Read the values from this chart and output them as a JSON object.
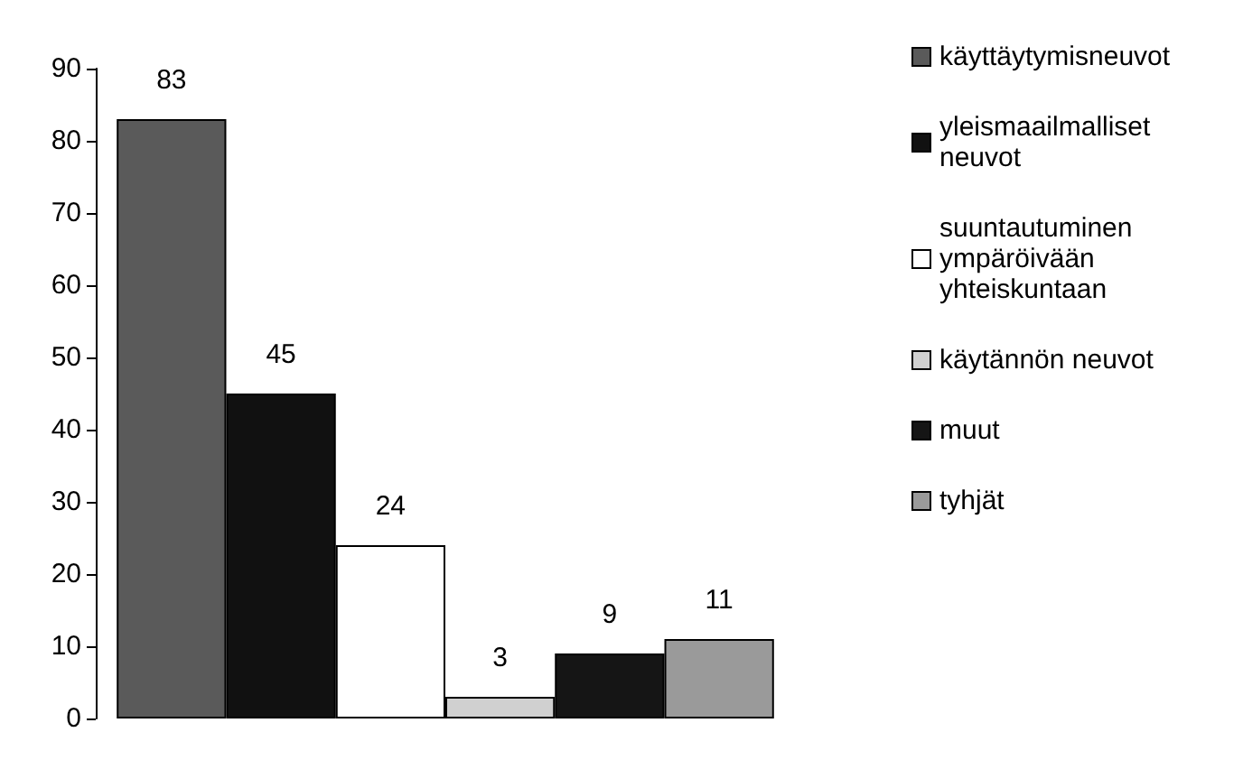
{
  "chart_data": {
    "type": "bar",
    "categories": [
      null
    ],
    "series": [
      {
        "name": "käyttäytymisneuvot",
        "color": "#5a5a5a",
        "values": [
          83
        ]
      },
      {
        "name": "yleismaailmalliset neuvot",
        "color": "#111111",
        "values": [
          45
        ]
      },
      {
        "name": "suuntautuminen ympäröivään yhteiskuntaan",
        "color": "#ffffff",
        "values": [
          24
        ]
      },
      {
        "name": "käytännön neuvot",
        "color": "#d0d0d0",
        "values": [
          3
        ]
      },
      {
        "name": "muut",
        "color": "#151515",
        "values": [
          9
        ]
      },
      {
        "name": "tyhjät",
        "color": "#9a9a9a",
        "values": [
          11
        ]
      }
    ],
    "ylim": [
      0,
      90
    ],
    "yticks": [
      0,
      10,
      20,
      30,
      40,
      50,
      60,
      70,
      80,
      90
    ],
    "data_labels": true,
    "legend": "right",
    "grid": false
  }
}
